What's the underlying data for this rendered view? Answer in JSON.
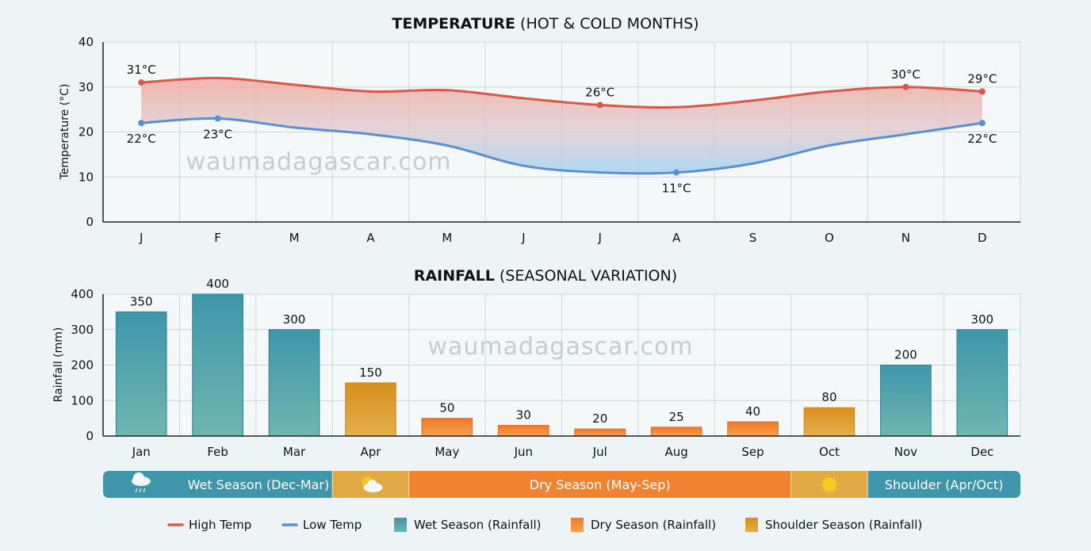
{
  "watermark": "waumadagascar.com",
  "colors": {
    "high": "#d9584a",
    "low": "#5b8fd4",
    "wet": "#3f96aa",
    "dry": "#f08331",
    "shoulder": "#e0a93f",
    "grid": "#cfd5d8"
  },
  "chart_data": [
    {
      "type": "line",
      "title_bold": "TEMPERATURE",
      "title_rest": " (HOT & COLD MONTHS)",
      "xlabel": "",
      "ylabel": "Temperature (°C)",
      "ylim": [
        0,
        40
      ],
      "yticks": [
        0,
        10,
        20,
        30,
        40
      ],
      "grid": true,
      "categories": [
        "J",
        "F",
        "M",
        "A",
        "M",
        "J",
        "J",
        "A",
        "S",
        "O",
        "N",
        "D"
      ],
      "series": [
        {
          "name": "High Temp",
          "values": [
            31,
            32,
            30.5,
            29,
            29.3,
            27.5,
            26,
            25.5,
            27,
            29,
            30,
            29
          ]
        },
        {
          "name": "Low Temp",
          "values": [
            22,
            23,
            21,
            19.5,
            17,
            12.5,
            11,
            11,
            13,
            17,
            19.5,
            22
          ]
        }
      ],
      "annotations": [
        {
          "series": 0,
          "index": 0,
          "text": "31°C",
          "pos": "above"
        },
        {
          "series": 1,
          "index": 0,
          "text": "22°C",
          "pos": "below"
        },
        {
          "series": 1,
          "index": 1,
          "text": "23°C",
          "pos": "below"
        },
        {
          "series": 0,
          "index": 6,
          "text": "26°C",
          "pos": "above"
        },
        {
          "series": 1,
          "index": 7,
          "text": "11°C",
          "pos": "below"
        },
        {
          "series": 0,
          "index": 10,
          "text": "30°C",
          "pos": "above"
        },
        {
          "series": 0,
          "index": 11,
          "text": "29°C",
          "pos": "above"
        },
        {
          "series": 1,
          "index": 11,
          "text": "22°C",
          "pos": "below"
        }
      ]
    },
    {
      "type": "bar",
      "title_bold": "RAINFALL",
      "title_rest": " (SEASONAL VARIATION)",
      "xlabel": "",
      "ylabel": "Rainfall (mm)",
      "ylim": [
        0,
        400
      ],
      "yticks": [
        0,
        100,
        200,
        300,
        400
      ],
      "grid": true,
      "categories": [
        "Jan",
        "Feb",
        "Mar",
        "Apr",
        "May",
        "Jun",
        "Jul",
        "Aug",
        "Sep",
        "Oct",
        "Nov",
        "Dec"
      ],
      "values": [
        350,
        400,
        300,
        150,
        50,
        30,
        20,
        25,
        40,
        80,
        200,
        300
      ],
      "season": [
        "wet",
        "wet",
        "wet",
        "shoulder",
        "dry",
        "dry",
        "dry",
        "dry",
        "dry",
        "shoulder",
        "wet",
        "wet"
      ]
    }
  ],
  "season_band": [
    {
      "label": "Wet Season (Dec-Mar)",
      "icon": "rain-cloud-icon",
      "season": "wet",
      "from": 0,
      "to": 3
    },
    {
      "label": "",
      "icon": "sun-cloud-icon",
      "season": "shoulder",
      "from": 3,
      "to": 4
    },
    {
      "label": "Dry Season (May-Sep)",
      "icon": "",
      "season": "dry",
      "from": 4,
      "to": 9
    },
    {
      "label": "",
      "icon": "sun-icon",
      "season": "shoulder",
      "from": 9,
      "to": 10
    },
    {
      "label": "Shoulder (Apr/Oct)",
      "icon": "",
      "season": "wet",
      "from": 10,
      "to": 12
    }
  ],
  "legend": [
    {
      "label": "High Temp",
      "kind": "line",
      "color_key": "high"
    },
    {
      "label": "Low Temp",
      "kind": "line",
      "color_key": "low"
    },
    {
      "label": "Wet Season (Rainfall)",
      "kind": "box",
      "color_key": "wet"
    },
    {
      "label": "Dry Season (Rainfall)",
      "kind": "box",
      "color_key": "dry"
    },
    {
      "label": "Shoulder Season (Rainfall)",
      "kind": "box",
      "color_key": "shoulder"
    }
  ]
}
